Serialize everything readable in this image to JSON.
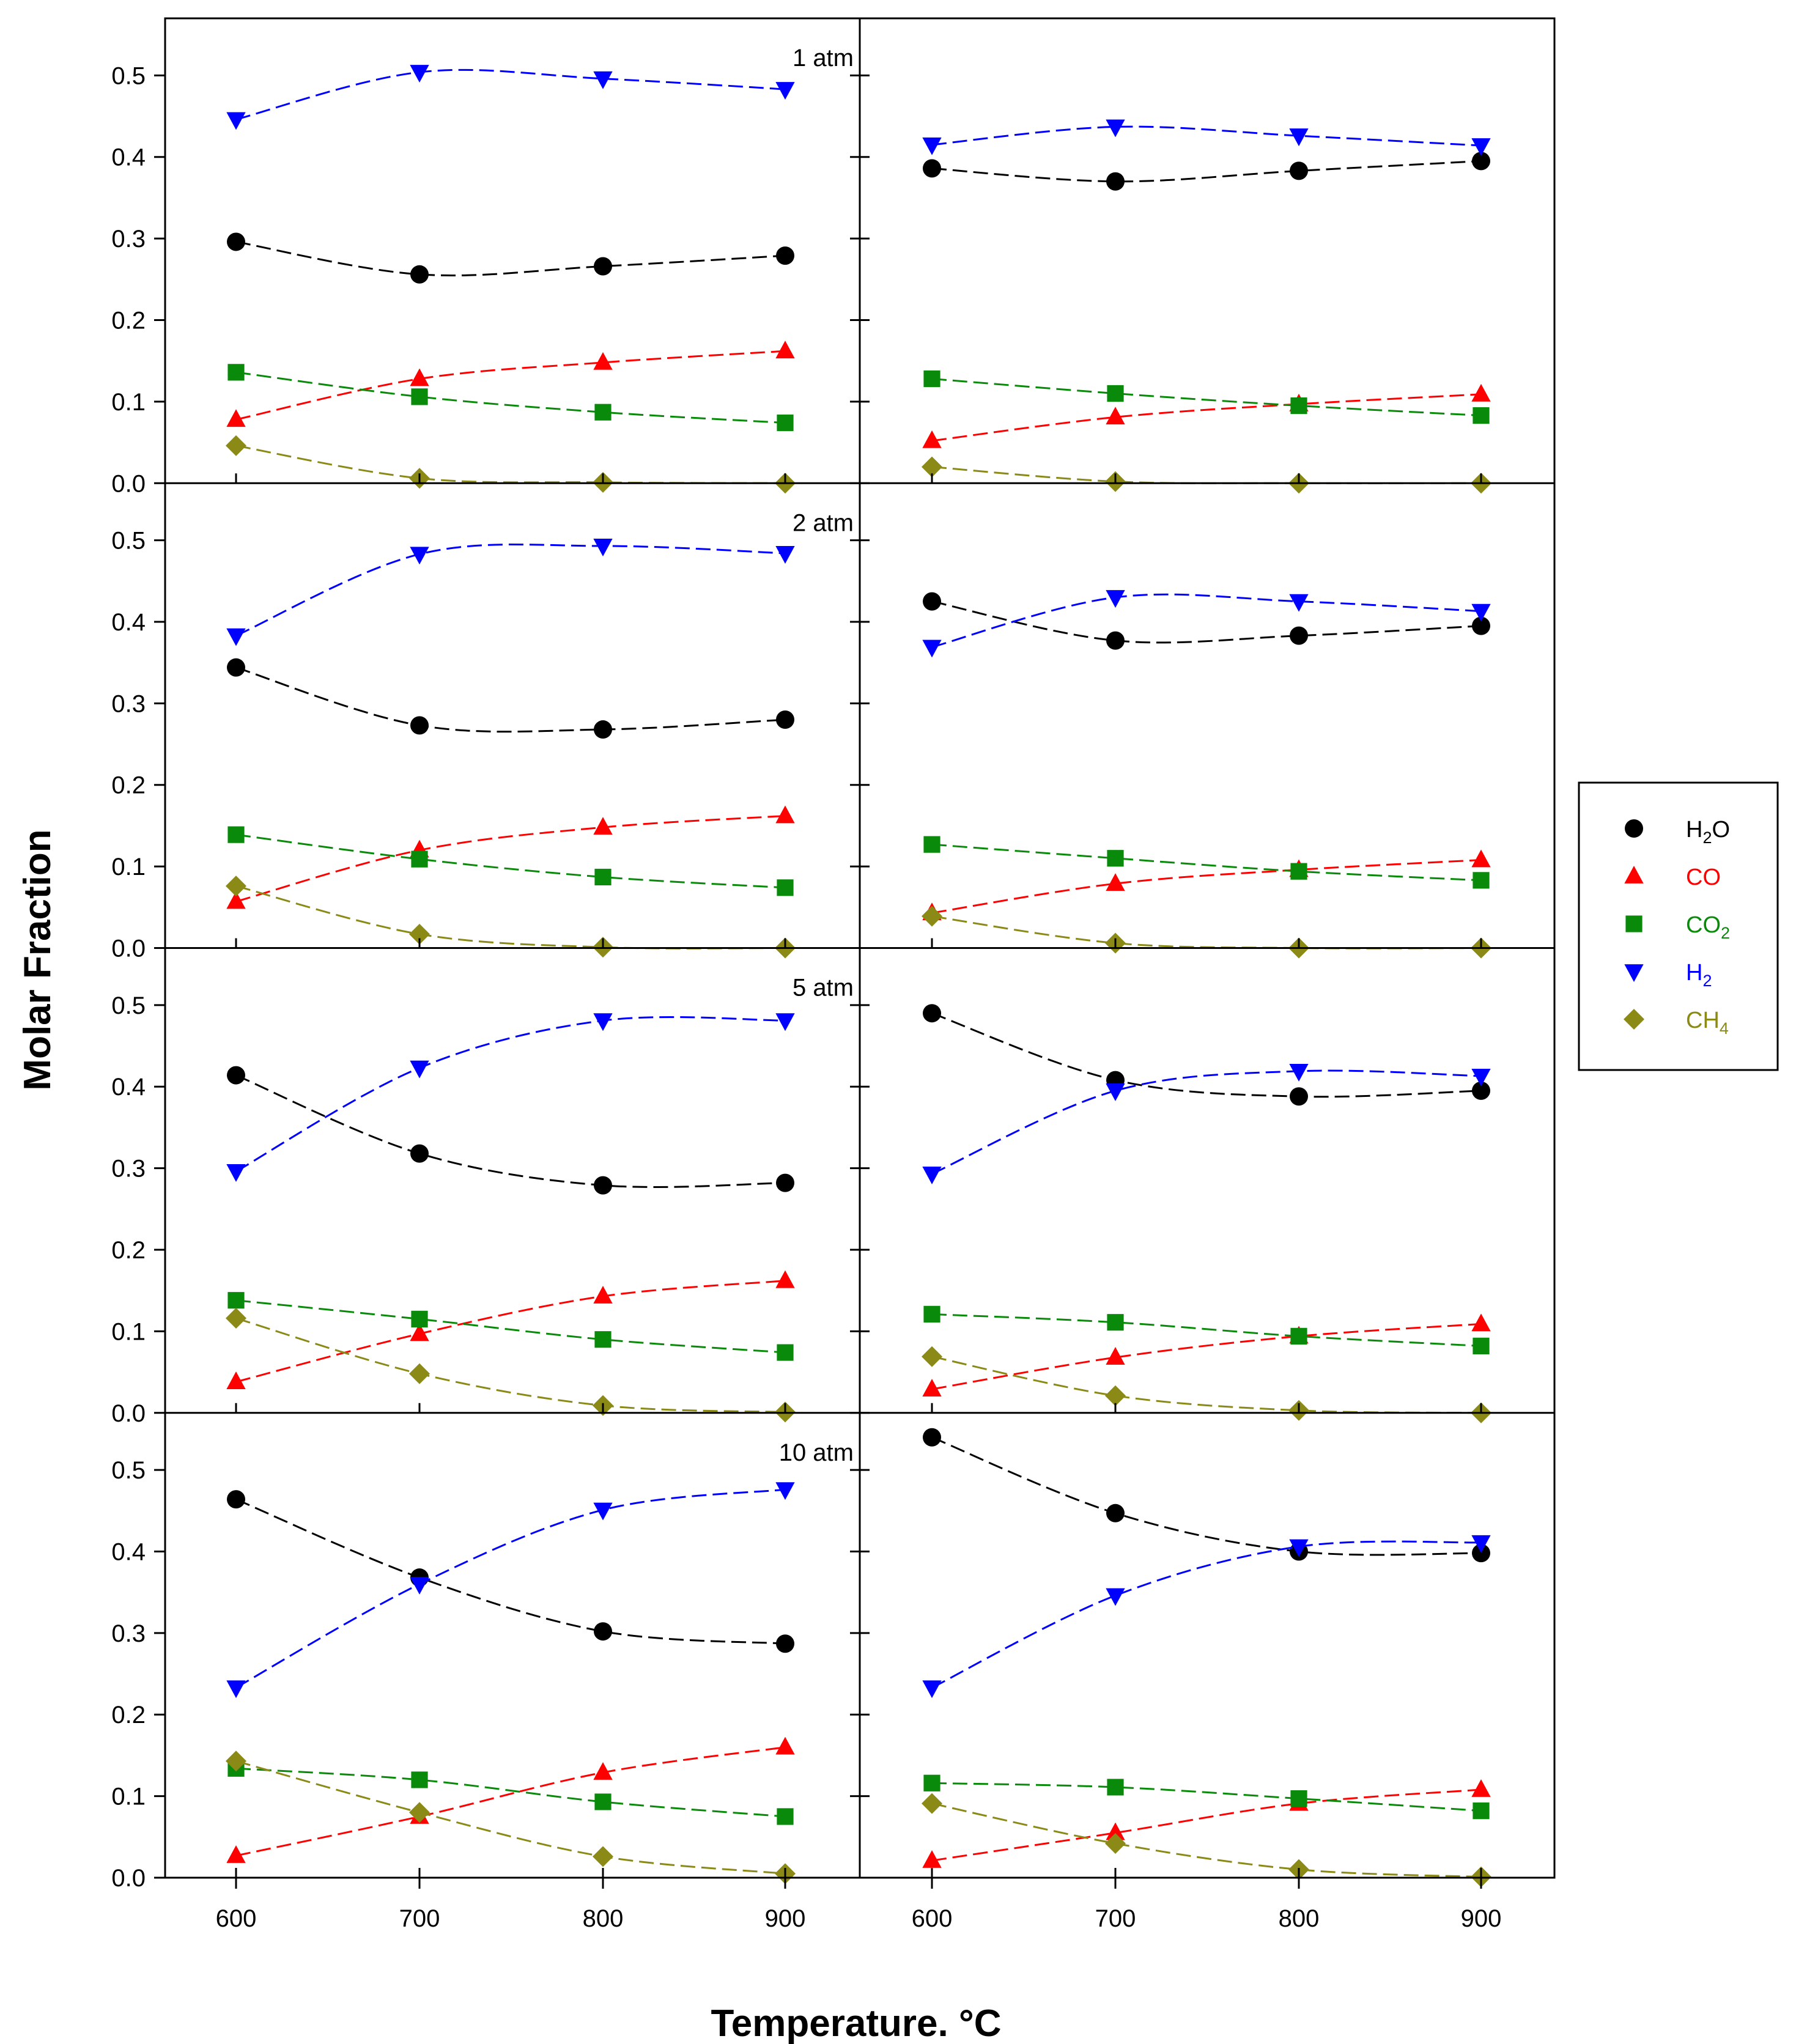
{
  "chart_data": {
    "type": "line",
    "xlabel": "Temperature. °C",
    "ylabel": "Molar Fraction",
    "x": [
      600,
      700,
      800,
      900
    ],
    "ylim": [
      0,
      0.57
    ],
    "yticks": [
      "0.0",
      "0.1",
      "0.2",
      "0.3",
      "0.4",
      "0.5"
    ],
    "xticks": [
      "600",
      "700",
      "800",
      "900"
    ],
    "legend_position": "right",
    "series_styles": [
      {
        "key": "H2O",
        "name": "H2O",
        "label_main": "H",
        "label_sub": "2",
        "label_tail": "O",
        "color": "#000000",
        "line_color": "#000000",
        "text_color": "#000000",
        "marker": "circle"
      },
      {
        "key": "CO",
        "name": "CO",
        "label_main": "CO",
        "label_sub": "",
        "label_tail": "",
        "color": "#ff0000",
        "line_color": "#ff0000",
        "text_color": "#ff0000",
        "marker": "triangle-up"
      },
      {
        "key": "CO2",
        "name": "CO2",
        "label_main": "CO",
        "label_sub": "2",
        "label_tail": "",
        "color": "#0a8a0a",
        "line_color": "#0a8a0a",
        "text_color": "#0a8a0a",
        "marker": "square"
      },
      {
        "key": "H2",
        "name": "H2",
        "label_main": "H",
        "label_sub": "2",
        "label_tail": "",
        "color": "#0000ff",
        "line_color": "#0000ff",
        "text_color": "#0000ff",
        "marker": "triangle-down"
      },
      {
        "key": "CH4",
        "name": "CH4",
        "label_main": "CH",
        "label_sub": "4",
        "label_tail": "",
        "color": "#8b8a17",
        "line_color": "#8b8a17",
        "text_color": "#8b8a17",
        "marker": "diamond"
      }
    ],
    "panels": [
      {
        "pressure": "1 atm",
        "left": {
          "H2O": [
            0.296,
            0.256,
            0.266,
            0.279
          ],
          "CO": [
            0.078,
            0.128,
            0.148,
            0.162
          ],
          "CO2": [
            0.136,
            0.106,
            0.087,
            0.074
          ],
          "H2": [
            0.446,
            0.504,
            0.496,
            0.483
          ],
          "CH4": [
            0.046,
            0.006,
            0.001,
            0.0
          ]
        },
        "right": {
          "H2O": [
            0.386,
            0.37,
            0.383,
            0.395
          ],
          "CO": [
            0.052,
            0.081,
            0.097,
            0.109
          ],
          "CO2": [
            0.128,
            0.11,
            0.095,
            0.083
          ],
          "H2": [
            0.415,
            0.437,
            0.426,
            0.414
          ],
          "CH4": [
            0.02,
            0.002,
            0.0,
            0.0
          ]
        }
      },
      {
        "pressure": "2 atm",
        "left": {
          "H2O": [
            0.344,
            0.273,
            0.268,
            0.28
          ],
          "CO": [
            0.057,
            0.12,
            0.148,
            0.162
          ],
          "CO2": [
            0.139,
            0.109,
            0.087,
            0.074
          ],
          "H2": [
            0.383,
            0.483,
            0.493,
            0.484
          ],
          "CH4": [
            0.076,
            0.017,
            0.001,
            0.0
          ]
        },
        "right": {
          "H2O": [
            0.425,
            0.377,
            0.383,
            0.395
          ],
          "CO": [
            0.043,
            0.079,
            0.096,
            0.108
          ],
          "CO2": [
            0.127,
            0.11,
            0.094,
            0.083
          ],
          "H2": [
            0.369,
            0.43,
            0.425,
            0.413
          ],
          "CH4": [
            0.039,
            0.006,
            0.0,
            0.0
          ]
        }
      },
      {
        "pressure": "5 atm",
        "left": {
          "H2O": [
            0.414,
            0.318,
            0.279,
            0.282
          ],
          "CO": [
            0.038,
            0.097,
            0.143,
            0.162
          ],
          "CO2": [
            0.138,
            0.115,
            0.09,
            0.074
          ],
          "H2": [
            0.296,
            0.423,
            0.481,
            0.481
          ],
          "CH4": [
            0.116,
            0.048,
            0.009,
            0.001
          ]
        },
        "right": {
          "H2O": [
            0.49,
            0.408,
            0.388,
            0.395
          ],
          "CO": [
            0.029,
            0.068,
            0.094,
            0.109
          ],
          "CO2": [
            0.121,
            0.111,
            0.094,
            0.082
          ],
          "H2": [
            0.293,
            0.395,
            0.419,
            0.413
          ],
          "CH4": [
            0.069,
            0.021,
            0.003,
            0.0
          ]
        }
      },
      {
        "pressure": "10 atm",
        "left": {
          "H2O": [
            0.464,
            0.368,
            0.302,
            0.287
          ],
          "CO": [
            0.027,
            0.075,
            0.129,
            0.16
          ],
          "CO2": [
            0.134,
            0.12,
            0.093,
            0.075
          ],
          "H2": [
            0.233,
            0.36,
            0.451,
            0.476
          ],
          "CH4": [
            0.143,
            0.08,
            0.026,
            0.005
          ]
        },
        "right": {
          "H2O": [
            0.54,
            0.447,
            0.4,
            0.398
          ],
          "CO": [
            0.021,
            0.055,
            0.091,
            0.108
          ],
          "CO2": [
            0.116,
            0.111,
            0.097,
            0.082
          ],
          "H2": [
            0.233,
            0.346,
            0.406,
            0.411
          ],
          "CH4": [
            0.091,
            0.042,
            0.01,
            0.001
          ]
        }
      }
    ]
  }
}
